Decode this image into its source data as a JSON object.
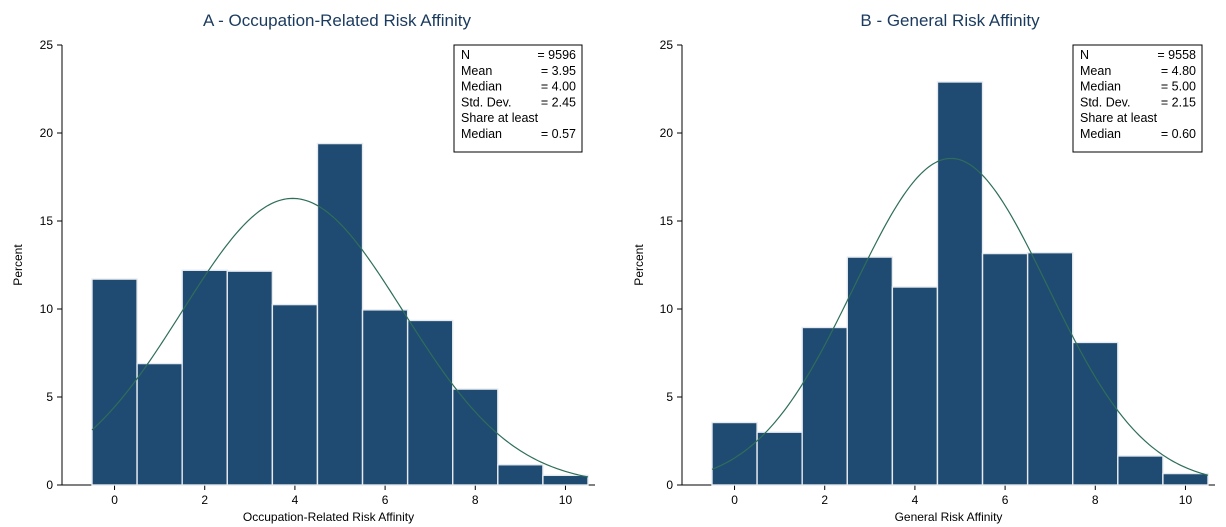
{
  "colors": {
    "bar_fill": "#1f4a72",
    "bar_stroke": "#e6ebf0",
    "curve": "#2e6e5a",
    "title": "#1a3a5e"
  },
  "chart_data": [
    {
      "type": "bar",
      "title": "A - Occupation-Related Risk Affinity",
      "xlabel": "Occupation-Related Risk Affinity",
      "ylabel": "Percent",
      "xlim": [
        -0.5,
        10.5
      ],
      "ylim": [
        0,
        25
      ],
      "xticks": [
        0,
        2,
        4,
        6,
        8,
        10
      ],
      "yticks": [
        0,
        5,
        10,
        15,
        20,
        25
      ],
      "grid": false,
      "categories": [
        0,
        1,
        2,
        3,
        4,
        5,
        6,
        7,
        8,
        9,
        10
      ],
      "values": [
        11.7,
        6.9,
        12.2,
        12.15,
        10.25,
        19.4,
        9.95,
        9.35,
        5.45,
        1.15,
        0.55
      ],
      "normal_curve": {
        "mean": 3.95,
        "sd": 2.45
      },
      "stats": [
        {
          "label": "N",
          "value": "= 9596"
        },
        {
          "label": "Mean",
          "value": "= 3.95"
        },
        {
          "label": "Median",
          "value": "= 4.00"
        },
        {
          "label": "Std. Dev.",
          "value": "= 2.45"
        },
        {
          "label": "Share at least",
          "value": ""
        },
        {
          "label": "Median",
          "value": "= 0.57"
        }
      ],
      "stats_position": "top-right"
    },
    {
      "type": "bar",
      "title": "B - General Risk Affinity",
      "xlabel": "General Risk Affinity",
      "ylabel": "Percent",
      "xlim": [
        -0.5,
        10.5
      ],
      "ylim": [
        0,
        25
      ],
      "xticks": [
        0,
        2,
        4,
        6,
        8,
        10
      ],
      "yticks": [
        0,
        5,
        10,
        15,
        20,
        25
      ],
      "grid": false,
      "categories": [
        0,
        1,
        2,
        3,
        4,
        5,
        6,
        7,
        8,
        9,
        10
      ],
      "values": [
        3.55,
        3.0,
        8.95,
        12.95,
        11.25,
        22.9,
        13.15,
        13.2,
        8.1,
        1.65,
        0.65
      ],
      "normal_curve": {
        "mean": 4.8,
        "sd": 2.15
      },
      "stats": [
        {
          "label": "N",
          "value": "= 9558"
        },
        {
          "label": "Mean",
          "value": "= 4.80"
        },
        {
          "label": "Median",
          "value": "= 5.00"
        },
        {
          "label": "Std. Dev.",
          "value": "= 2.15"
        },
        {
          "label": "Share at least",
          "value": ""
        },
        {
          "label": "Median",
          "value": "= 0.60"
        }
      ],
      "stats_position": "top-right"
    }
  ]
}
